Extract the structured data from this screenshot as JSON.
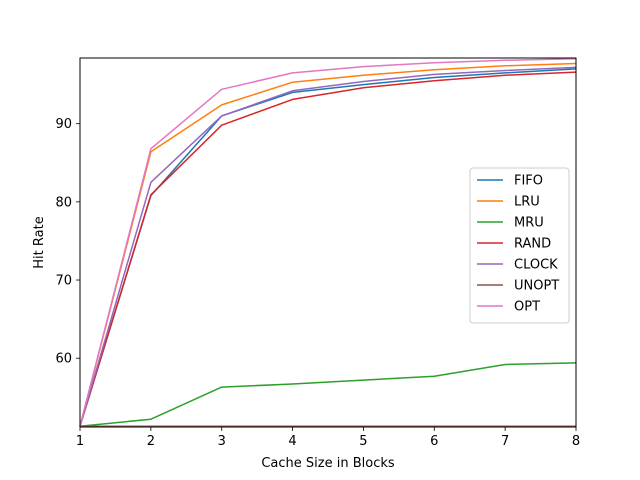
{
  "chart_data": {
    "type": "line",
    "title": "",
    "xlabel": "Cache Size in Blocks",
    "ylabel": "Hit Rate",
    "xlim": [
      1,
      8
    ],
    "ylim": [
      51.2,
      98.4
    ],
    "x": [
      1,
      2,
      3,
      4,
      5,
      6,
      7,
      8
    ],
    "xticks": [
      "1",
      "2",
      "3",
      "4",
      "5",
      "6",
      "7",
      "8"
    ],
    "yticks": [
      60,
      70,
      80,
      90
    ],
    "ytick_labels": [
      "60",
      "70",
      "80",
      "90"
    ],
    "grid": false,
    "legend_position": "right",
    "series": [
      {
        "name": "FIFO",
        "color": "#1f77b4",
        "values": [
          51.3,
          80.8,
          91.0,
          94.0,
          95.0,
          95.9,
          96.5,
          97.0
        ]
      },
      {
        "name": "LRU",
        "color": "#ff7f0e",
        "values": [
          51.3,
          86.4,
          92.4,
          95.3,
          96.2,
          96.9,
          97.4,
          97.7
        ]
      },
      {
        "name": "MRU",
        "color": "#2ca02c",
        "values": [
          51.3,
          52.2,
          56.3,
          56.7,
          57.2,
          57.7,
          59.2,
          59.4
        ]
      },
      {
        "name": "RAND",
        "color": "#d62728",
        "values": [
          51.3,
          80.9,
          89.8,
          93.1,
          94.6,
          95.5,
          96.2,
          96.6
        ]
      },
      {
        "name": "CLOCK",
        "color": "#9467bd",
        "values": [
          51.3,
          82.5,
          91.0,
          94.2,
          95.4,
          96.3,
          96.8,
          97.2
        ]
      },
      {
        "name": "UNOPT",
        "color": "#8c564b",
        "values": [
          51.3,
          51.3,
          51.3,
          51.3,
          51.3,
          51.3,
          51.3,
          51.3
        ]
      },
      {
        "name": "OPT",
        "color": "#e377c2",
        "values": [
          51.3,
          86.8,
          94.4,
          96.5,
          97.3,
          97.8,
          98.1,
          98.3
        ]
      }
    ]
  }
}
